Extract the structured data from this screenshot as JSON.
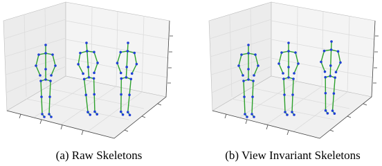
{
  "figure": {
    "panels": [
      {
        "caption": "(a) Raw Skeletons"
      },
      {
        "caption": "(b) View Invariant Skeletons"
      }
    ]
  }
}
